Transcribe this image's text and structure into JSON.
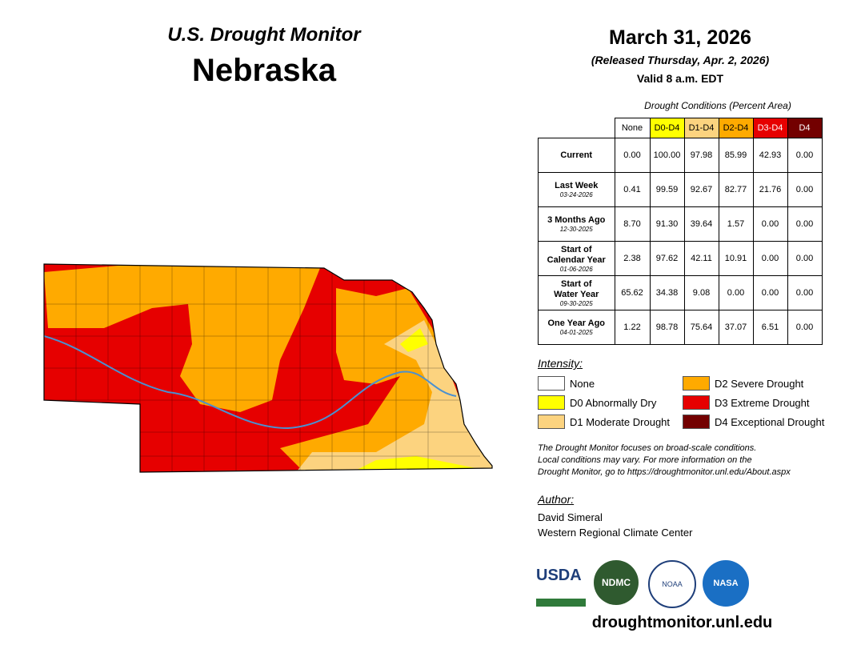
{
  "header": {
    "program": "U.S. Drought Monitor",
    "state": "Nebraska",
    "date": "March 31, 2026",
    "released": "(Released Thursday, Apr. 2, 2026)",
    "valid": "Valid 8 a.m. EDT"
  },
  "table": {
    "caption": "Drought Conditions (Percent Area)",
    "columns": [
      "None",
      "D0-D4",
      "D1-D4",
      "D2-D4",
      "D3-D4",
      "D4"
    ],
    "rows": [
      {
        "label": [
          "Current"
        ],
        "values": [
          "0.00",
          "100.00",
          "97.98",
          "85.99",
          "42.93",
          "0.00"
        ]
      },
      {
        "label": [
          "Last Week"
        ],
        "date": "03-24-2026",
        "values": [
          "0.41",
          "99.59",
          "92.67",
          "82.77",
          "21.76",
          "0.00"
        ]
      },
      {
        "label": [
          "3 Months Ago"
        ],
        "date": "12-30-2025",
        "values": [
          "8.70",
          "91.30",
          "39.64",
          "1.57",
          "0.00",
          "0.00"
        ]
      },
      {
        "label": [
          "Start of",
          "Calendar Year"
        ],
        "date": "01-06-2026",
        "values": [
          "2.38",
          "97.62",
          "42.11",
          "10.91",
          "0.00",
          "0.00"
        ]
      },
      {
        "label": [
          "Start of",
          "Water Year"
        ],
        "date": "09-30-2025",
        "values": [
          "65.62",
          "34.38",
          "9.08",
          "0.00",
          "0.00",
          "0.00"
        ]
      },
      {
        "label": [
          "One Year Ago"
        ],
        "date": "04-01-2025",
        "values": [
          "1.22",
          "98.78",
          "75.64",
          "37.07",
          "6.51",
          "0.00"
        ]
      }
    ]
  },
  "legend": {
    "title": "Intensity:",
    "items": [
      {
        "label": "None",
        "color": "#ffffff"
      },
      {
        "label": "D0 Abnormally Dry",
        "color": "#ffff00"
      },
      {
        "label": "D1 Moderate Drought",
        "color": "#fcd37f"
      },
      {
        "label": "D2 Severe Drought",
        "color": "#ffaa00"
      },
      {
        "label": "D3 Extreme Drought",
        "color": "#e60000"
      },
      {
        "label": "D4 Exceptional Drought",
        "color": "#730000"
      }
    ]
  },
  "note": [
    "The Drought Monitor focuses on broad-scale conditions.",
    "Local conditions may vary. For more information on the",
    "Drought Monitor, go to https://droughtmonitor.unl.edu/About.aspx"
  ],
  "author": {
    "title": "Author:",
    "lines": [
      "David Simeral",
      "Western Regional Climate Center"
    ]
  },
  "logos": [
    "USDA",
    "NDMC",
    "NOAA",
    "NASA"
  ],
  "footer": "droughtmonitor.unl.edu"
}
